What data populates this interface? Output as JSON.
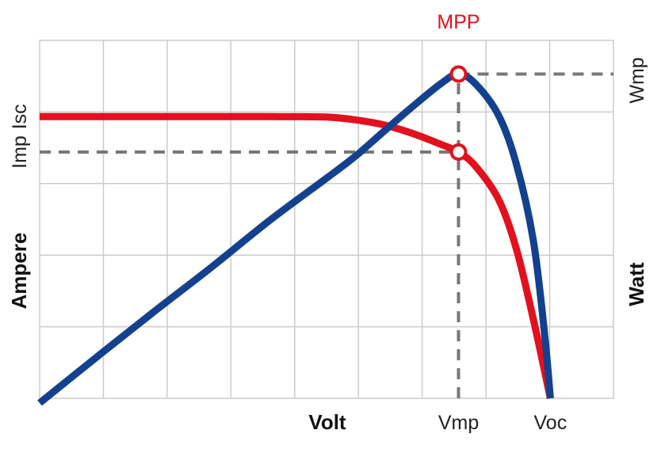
{
  "chart_data": {
    "type": "line",
    "title": "",
    "xlabel": "Volt",
    "ylabel_left": "Ampere",
    "ylabel_right": "Watt",
    "xlim": [
      0,
      100
    ],
    "ylim_left": [
      0,
      100
    ],
    "ylim_right": [
      0,
      100
    ],
    "grid": true,
    "x_tick_labels": [
      {
        "label": "Vmp",
        "x": 73
      },
      {
        "label": "Voc",
        "x": 89
      }
    ],
    "y_left_tick_labels": [
      {
        "label": "Isc",
        "y": 78.7
      },
      {
        "label": "Imp",
        "y": 68.8
      }
    ],
    "y_right_tick_labels": [
      {
        "label": "Wmp",
        "y": 90.6
      }
    ],
    "mpp": {
      "label": "MPP",
      "x": 73,
      "current": 68.8,
      "power": 90.6
    },
    "series": [
      {
        "axis": "left",
        "color": "#e3101d",
        "x": [
          0,
          10,
          20,
          30,
          40,
          50,
          55,
          60,
          65,
          70,
          73,
          76,
          80,
          83,
          86,
          89
        ],
        "y": [
          78.7,
          78.7,
          78.7,
          78.7,
          78.7,
          78.6,
          77.8,
          76.4,
          74.0,
          70.9,
          68.8,
          64.8,
          55.5,
          42.2,
          22.4,
          0
        ]
      },
      {
        "axis": "right",
        "color": "#14418f",
        "x": [
          0,
          10,
          20,
          30,
          40,
          50,
          55,
          60,
          65,
          70,
          73,
          76,
          80,
          83,
          86,
          88,
          89
        ],
        "y": [
          -1.3,
          11.6,
          24.3,
          36.7,
          49.6,
          61.5,
          67.6,
          74.6,
          81.5,
          88.0,
          90.6,
          87.8,
          79.0,
          65.9,
          44.5,
          18.0,
          0
        ]
      }
    ]
  }
}
